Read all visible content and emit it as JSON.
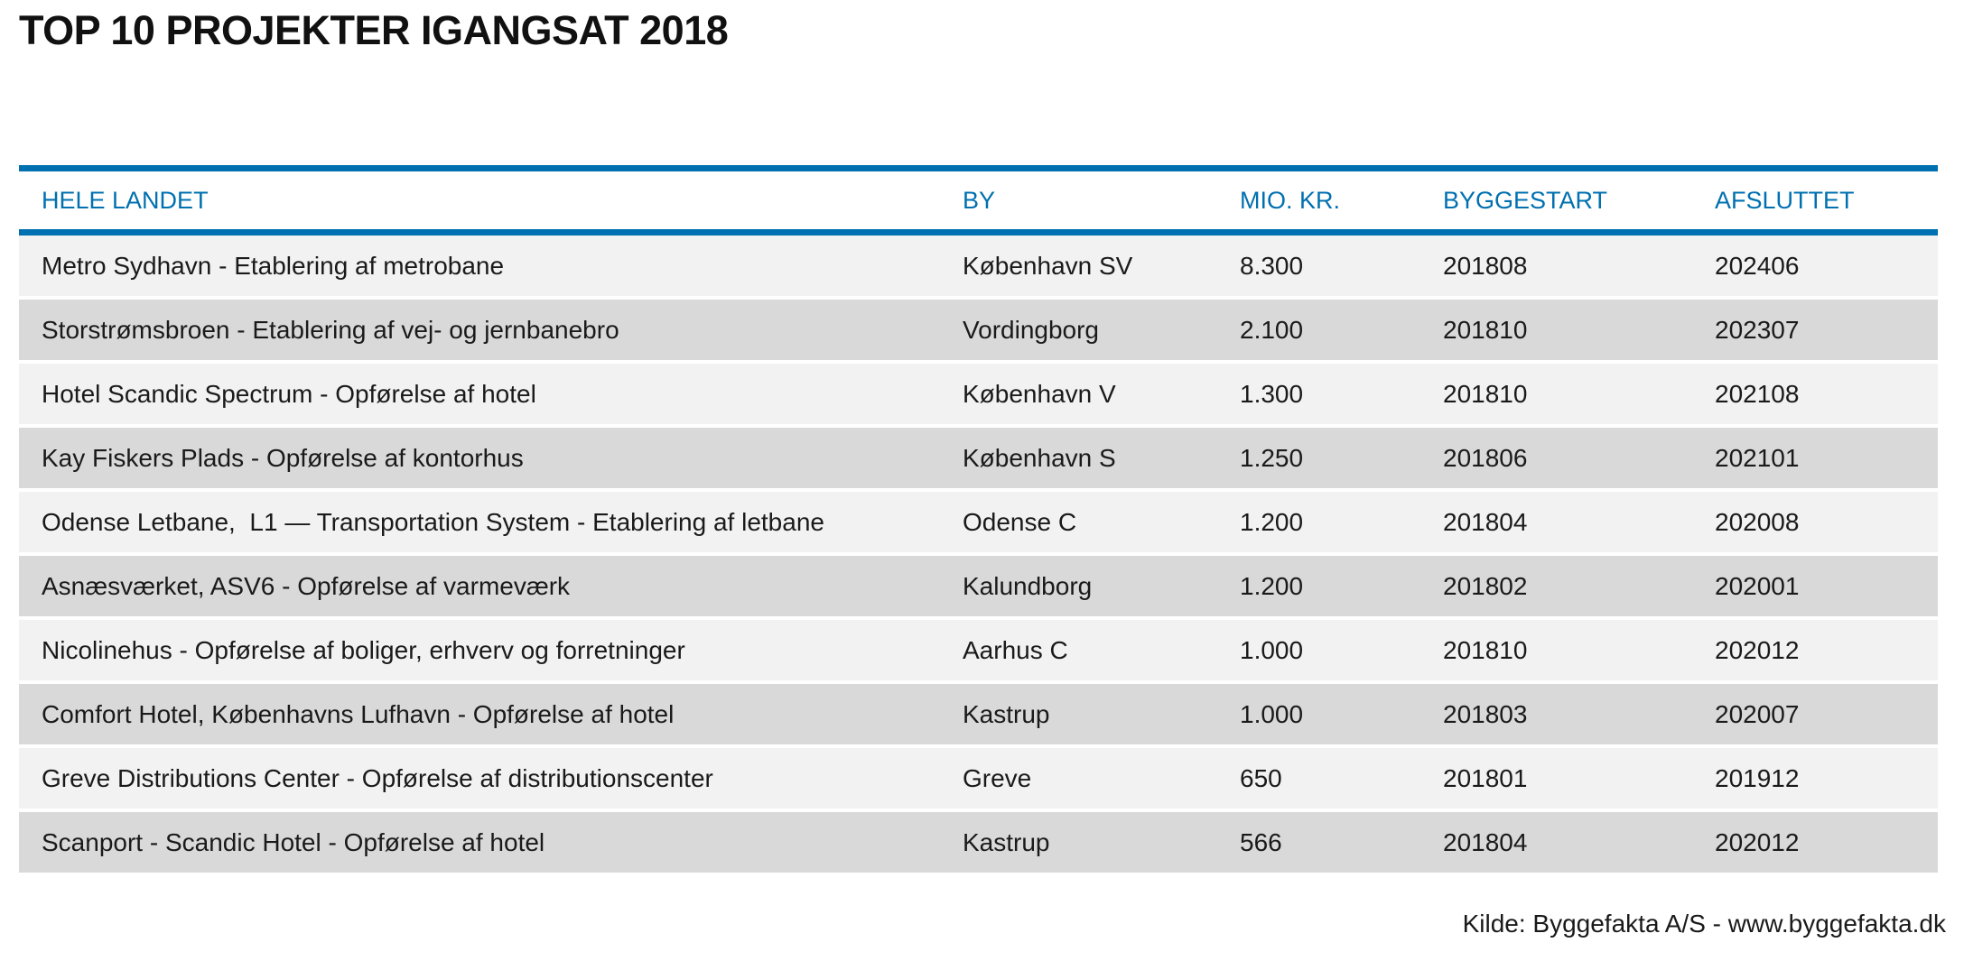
{
  "title": "TOP 10 PROJEKTER IGANGSAT 2018",
  "table": {
    "headers": [
      "HELE LANDET",
      "BY",
      "MIO. KR.",
      "BYGGESTART",
      "AFSLUTTET"
    ],
    "rows": [
      [
        "Metro Sydhavn - Etablering af metrobane",
        "København SV",
        "8.300",
        "201808",
        "202406"
      ],
      [
        "Storstrømsbroen - Etablering af vej- og jernbanebro",
        "Vordingborg",
        "2.100",
        "201810",
        "202307"
      ],
      [
        "Hotel Scandic Spectrum - Opførelse af hotel",
        "København V",
        "1.300",
        "201810",
        "202108"
      ],
      [
        "Kay Fiskers Plads - Opførelse af kontorhus",
        "København S",
        "1.250",
        "201806",
        "202101"
      ],
      [
        "Odense Letbane,  L1 — Transportation System - Etablering af letbane",
        "Odense C",
        "1.200",
        "201804",
        "202008"
      ],
      [
        "Asnæsværket, ASV6 - Opførelse af varmeværk",
        "Kalundborg",
        "1.200",
        "201802",
        "202001"
      ],
      [
        "Nicolinehus - Opførelse af boliger, erhverv og forretninger",
        "Aarhus C",
        "1.000",
        "201810",
        "202012"
      ],
      [
        "Comfort Hotel, Københavns Lufhavn - Opførelse af hotel",
        "Kastrup",
        "1.000",
        "201803",
        "202007"
      ],
      [
        "Greve Distributions Center - Opførelse af distributionscenter",
        "Greve",
        "650",
        "201801",
        "201912"
      ],
      [
        "Scanport - Scandic Hotel - Opførelse af hotel",
        "Kastrup",
        "566",
        "201804",
        "202012"
      ]
    ]
  },
  "source": "Kilde: Byggefakta A/S - www.byggefakta.dk",
  "colors": {
    "accent": "#0070b0",
    "row_light": "#f2f2f2",
    "row_dark": "#d9d9d9"
  }
}
